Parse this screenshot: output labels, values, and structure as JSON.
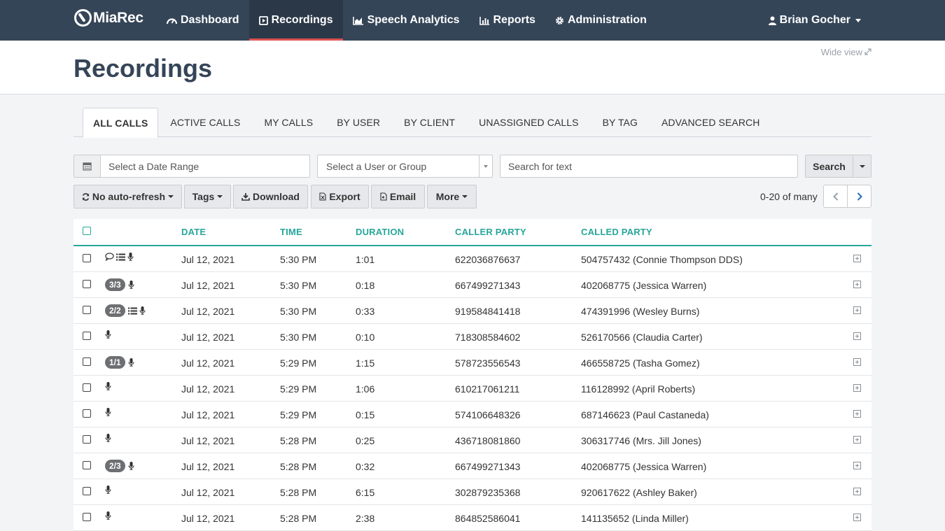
{
  "brand": {
    "name": "MiaRec"
  },
  "nav": {
    "items": [
      {
        "label": "Dashboard",
        "icon": "dashboard-icon"
      },
      {
        "label": "Recordings",
        "icon": "play-square-icon",
        "active": true
      },
      {
        "label": "Speech Analytics",
        "icon": "area-chart-icon"
      },
      {
        "label": "Reports",
        "icon": "bar-chart-icon"
      },
      {
        "label": "Administration",
        "icon": "gear-icon"
      }
    ],
    "user": "Brian Gocher"
  },
  "header": {
    "title": "Recordings",
    "wide_view": "Wide view"
  },
  "tabs": [
    "ALL CALLS",
    "ACTIVE CALLS",
    "MY CALLS",
    "BY USER",
    "BY CLIENT",
    "UNASSIGNED CALLS",
    "BY TAG",
    "ADVANCED SEARCH"
  ],
  "filters": {
    "date_placeholder": "Select a Date Range",
    "user_select": "Select a User or Group",
    "text_placeholder": "Search for text",
    "search_label": "Search"
  },
  "toolbar": {
    "refresh": "No auto-refresh",
    "tags": "Tags",
    "download": "Download",
    "export": "Export",
    "email": "Email",
    "more": "More",
    "paging": "0-20 of many"
  },
  "table": {
    "columns": [
      "DATE",
      "TIME",
      "DURATION",
      "CALLER PARTY",
      "CALLED PARTY"
    ],
    "rows": [
      {
        "badge": "",
        "icons": [
          "comment-icon",
          "list-icon",
          "microphone-icon"
        ],
        "date": "Jul 12, 2021",
        "time": "5:30 PM",
        "duration": "1:01",
        "caller": "622036876637",
        "called": "504757432 (Connie Thompson DDS)"
      },
      {
        "badge": "3/3",
        "icons": [
          "microphone-icon"
        ],
        "date": "Jul 12, 2021",
        "time": "5:30 PM",
        "duration": "0:18",
        "caller": "667499271343",
        "called": "402068775 (Jessica Warren)"
      },
      {
        "badge": "2/2",
        "icons": [
          "list-icon",
          "microphone-icon"
        ],
        "date": "Jul 12, 2021",
        "time": "5:30 PM",
        "duration": "0:33",
        "caller": "919584841418",
        "called": "474391996 (Wesley Burns)"
      },
      {
        "badge": "",
        "icons": [
          "microphone-icon"
        ],
        "date": "Jul 12, 2021",
        "time": "5:30 PM",
        "duration": "0:10",
        "caller": "718308584602",
        "called": "526170566 (Claudia Carter)"
      },
      {
        "badge": "1/1",
        "icons": [
          "microphone-icon"
        ],
        "date": "Jul 12, 2021",
        "time": "5:29 PM",
        "duration": "1:15",
        "caller": "578723556543",
        "called": "466558725 (Tasha Gomez)"
      },
      {
        "badge": "",
        "icons": [
          "microphone-icon"
        ],
        "date": "Jul 12, 2021",
        "time": "5:29 PM",
        "duration": "1:06",
        "caller": "610217061211",
        "called": "116128992 (April Roberts)"
      },
      {
        "badge": "",
        "icons": [
          "microphone-icon"
        ],
        "date": "Jul 12, 2021",
        "time": "5:29 PM",
        "duration": "0:15",
        "caller": "574106648326",
        "called": "687146623 (Paul Castaneda)"
      },
      {
        "badge": "",
        "icons": [
          "microphone-icon"
        ],
        "date": "Jul 12, 2021",
        "time": "5:28 PM",
        "duration": "0:25",
        "caller": "436718081860",
        "called": "306317746 (Mrs. Jill Jones)"
      },
      {
        "badge": "2/3",
        "icons": [
          "microphone-icon"
        ],
        "date": "Jul 12, 2021",
        "time": "5:28 PM",
        "duration": "0:32",
        "caller": "667499271343",
        "called": "402068775 (Jessica Warren)"
      },
      {
        "badge": "",
        "icons": [
          "microphone-icon"
        ],
        "date": "Jul 12, 2021",
        "time": "5:28 PM",
        "duration": "6:15",
        "caller": "302879235368",
        "called": "920617622 (Ashley Baker)"
      },
      {
        "badge": "",
        "icons": [
          "microphone-icon"
        ],
        "date": "Jul 12, 2021",
        "time": "5:28 PM",
        "duration": "2:38",
        "caller": "864852586041",
        "called": "141135652 (Linda Miller)"
      }
    ]
  },
  "colors": {
    "navbar": "#354558",
    "accent": "#26a69a",
    "active_underline": "#d9534f"
  }
}
